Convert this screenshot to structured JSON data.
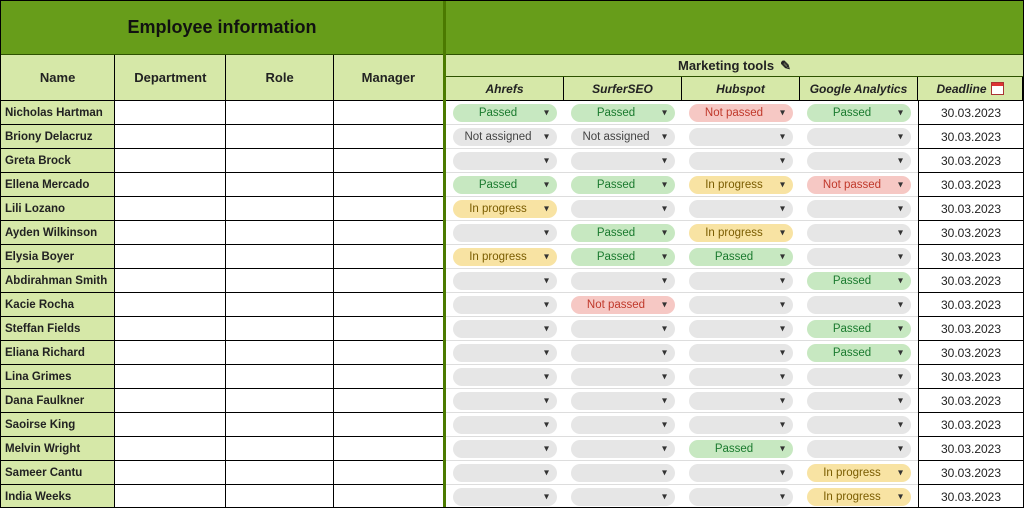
{
  "left": {
    "title": "Employee information",
    "columns": [
      "Name",
      "Department",
      "Role",
      "Manager"
    ]
  },
  "right": {
    "tools_title": "Marketing tools",
    "tool_columns": [
      "Ahrefs",
      "SurferSEO",
      "Hubspot",
      "Google Analytics"
    ],
    "deadline_label": "Deadline"
  },
  "status_styles": {
    "Passed": {
      "bg": "#c7e8c1",
      "fg": "#1a7a2e"
    },
    "Not passed": {
      "bg": "#f6c8c4",
      "fg": "#c0392b"
    },
    "In progress": {
      "bg": "#f8e3a3",
      "fg": "#7a5c00"
    },
    "Not assigned": {
      "bg": "#e6e6e6",
      "fg": "#444444"
    },
    "": {
      "bg": "#e6e6e6",
      "fg": "#444444"
    }
  },
  "colors": {
    "header_bg": "#679d1a",
    "subheader_bg": "#d6e8a8",
    "border_dark": "#000000",
    "border_green": "#2e5200"
  },
  "employees": [
    {
      "name": "Nicholas Hartman",
      "ahrefs": "Passed",
      "surfer": "Passed",
      "hubspot": "Not passed",
      "ga": "Passed",
      "deadline": "30.03.2023"
    },
    {
      "name": "Briony Delacruz",
      "ahrefs": "Not assigned",
      "surfer": "Not assigned",
      "hubspot": "",
      "ga": "",
      "deadline": "30.03.2023"
    },
    {
      "name": "Greta Brock",
      "ahrefs": "",
      "surfer": "",
      "hubspot": "",
      "ga": "",
      "deadline": "30.03.2023"
    },
    {
      "name": "Ellena Mercado",
      "ahrefs": "Passed",
      "surfer": "Passed",
      "hubspot": "In progress",
      "ga": "Not passed",
      "deadline": "30.03.2023"
    },
    {
      "name": "Lili Lozano",
      "ahrefs": "In progress",
      "surfer": "",
      "hubspot": "",
      "ga": "",
      "deadline": "30.03.2023"
    },
    {
      "name": "Ayden Wilkinson",
      "ahrefs": "",
      "surfer": "Passed",
      "hubspot": "In progress",
      "ga": "",
      "deadline": "30.03.2023"
    },
    {
      "name": "Elysia Boyer",
      "ahrefs": "In progress",
      "surfer": "Passed",
      "hubspot": "Passed",
      "ga": "",
      "deadline": "30.03.2023"
    },
    {
      "name": "Abdirahman Smith",
      "ahrefs": "",
      "surfer": "",
      "hubspot": "",
      "ga": "Passed",
      "deadline": "30.03.2023"
    },
    {
      "name": "Kacie Rocha",
      "ahrefs": "",
      "surfer": "Not passed",
      "hubspot": "",
      "ga": "",
      "deadline": "30.03.2023"
    },
    {
      "name": "Steffan Fields",
      "ahrefs": "",
      "surfer": "",
      "hubspot": "",
      "ga": "Passed",
      "deadline": "30.03.2023"
    },
    {
      "name": "Eliana Richard",
      "ahrefs": "",
      "surfer": "",
      "hubspot": "",
      "ga": "Passed",
      "deadline": "30.03.2023"
    },
    {
      "name": "Lina Grimes",
      "ahrefs": "",
      "surfer": "",
      "hubspot": "",
      "ga": "",
      "deadline": "30.03.2023"
    },
    {
      "name": "Dana Faulkner",
      "ahrefs": "",
      "surfer": "",
      "hubspot": "",
      "ga": "",
      "deadline": "30.03.2023"
    },
    {
      "name": "Saoirse King",
      "ahrefs": "",
      "surfer": "",
      "hubspot": "",
      "ga": "",
      "deadline": "30.03.2023"
    },
    {
      "name": "Melvin Wright",
      "ahrefs": "",
      "surfer": "",
      "hubspot": "Passed",
      "ga": "",
      "deadline": "30.03.2023"
    },
    {
      "name": "Sameer Cantu",
      "ahrefs": "",
      "surfer": "",
      "hubspot": "",
      "ga": "In progress",
      "deadline": "30.03.2023"
    },
    {
      "name": "India Weeks",
      "ahrefs": "",
      "surfer": "",
      "hubspot": "",
      "ga": "In progress",
      "deadline": "30.03.2023"
    }
  ]
}
